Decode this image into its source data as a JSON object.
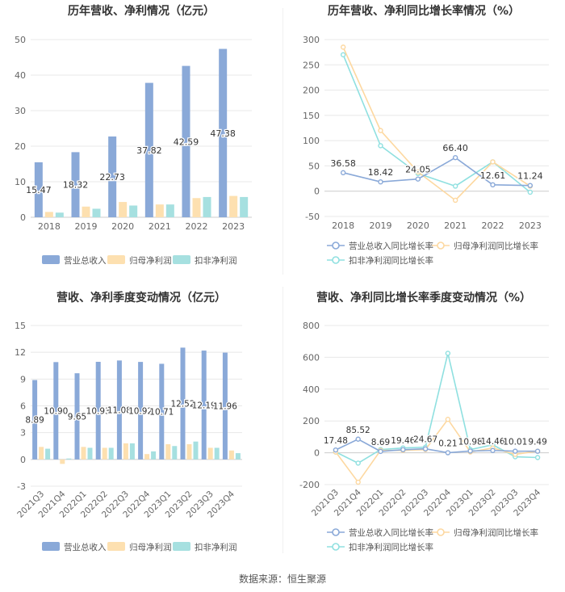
{
  "source_text": "数据来源：恒生聚源",
  "colors": {
    "revenue": "#8aa9d8",
    "net_profit": "#fde0b0",
    "deducted": "#a6e0e0",
    "grid": "#e8e8e8",
    "axis_text": "#666666"
  },
  "chart_data": [
    {
      "type": "bar",
      "title": "历年营收、净利情况（亿元）",
      "categories": [
        "2018",
        "2019",
        "2020",
        "2021",
        "2022",
        "2023"
      ],
      "ylim": [
        0,
        50
      ],
      "yticks": [
        0,
        10,
        20,
        30,
        40,
        50
      ],
      "series": [
        {
          "name": "营业总收入",
          "values": [
            15.47,
            18.32,
            22.73,
            37.82,
            42.59,
            47.38
          ],
          "labels": [
            "15.47",
            "18.32",
            "22.73",
            "37.82",
            "42.59",
            "47.38"
          ]
        },
        {
          "name": "归母净利润",
          "values": [
            1.5,
            3.0,
            4.3,
            3.6,
            5.4,
            6.0
          ]
        },
        {
          "name": "扣非净利润",
          "values": [
            1.3,
            2.4,
            3.3,
            3.6,
            5.7,
            5.7
          ]
        }
      ],
      "legend": "bottom"
    },
    {
      "type": "line",
      "title": "历年营收、净利同比增长率情况（%）",
      "categories": [
        "2018",
        "2019",
        "2020",
        "2021",
        "2022",
        "2023"
      ],
      "ylim": [
        -50,
        300
      ],
      "yticks": [
        -50,
        0,
        50,
        100,
        150,
        200,
        250,
        300
      ],
      "series": [
        {
          "name": "营业总收入同比增长率",
          "values": [
            36.58,
            18.42,
            24.05,
            66.4,
            12.61,
            11.24
          ],
          "labels": [
            "36.58",
            "18.42",
            "24.05",
            "66.40",
            "12.61",
            "11.24"
          ]
        },
        {
          "name": "归母净利润同比增长率",
          "values": [
            285,
            120,
            38,
            -18,
            58,
            10
          ]
        },
        {
          "name": "扣非净利润同比增长率",
          "values": [
            270,
            90,
            35,
            10,
            58,
            -2
          ]
        }
      ],
      "legend": "bottom"
    },
    {
      "type": "bar",
      "title": "营收、净利季度变动情况（亿元）",
      "categories": [
        "2021Q3",
        "2021Q4",
        "2022Q1",
        "2022Q2",
        "2022Q3",
        "2022Q4",
        "2023Q1",
        "2023Q2",
        "2023Q3",
        "2023Q4"
      ],
      "ylim": [
        -3,
        15
      ],
      "yticks": [
        -3,
        0,
        3,
        6,
        9,
        12,
        15
      ],
      "series": [
        {
          "name": "营业总收入",
          "values": [
            8.89,
            10.9,
            9.65,
            10.93,
            11.08,
            10.92,
            10.71,
            12.52,
            12.19,
            11.96
          ],
          "labels": [
            "8.89",
            "10.90",
            "9.65",
            "10.93",
            "11.08",
            "10.92",
            "10.71",
            "12.52",
            "12.19",
            "11.96"
          ]
        },
        {
          "name": "归母净利润",
          "values": [
            1.4,
            -0.5,
            1.4,
            1.3,
            1.8,
            0.6,
            1.7,
            1.7,
            1.3,
            1.0
          ]
        },
        {
          "name": "扣非净利润",
          "values": [
            1.2,
            0.1,
            1.3,
            1.3,
            1.8,
            0.9,
            1.5,
            2.0,
            1.3,
            0.7
          ]
        }
      ],
      "legend": "bottom"
    },
    {
      "type": "line",
      "title": "营收、净利同比增长率季度变动情况（%）",
      "categories": [
        "2021Q3",
        "2021Q4",
        "2022Q1",
        "2022Q2",
        "2022Q3",
        "2022Q4",
        "2023Q1",
        "2023Q2",
        "2023Q3",
        "2023Q4"
      ],
      "ylim": [
        -200,
        800
      ],
      "yticks": [
        -200,
        0,
        200,
        400,
        600,
        800
      ],
      "series": [
        {
          "name": "营业总收入同比增长率",
          "values": [
            17.48,
            85.52,
            8.69,
            19.46,
            24.67,
            0.21,
            10.98,
            14.46,
            10.01,
            9.49
          ],
          "labels": [
            "17.48",
            "85.52",
            "8.69",
            "19.46",
            "24.67",
            "0.21",
            "10.98",
            "14.46",
            "10.01",
            "9.49"
          ]
        },
        {
          "name": "归母净利润同比增长率",
          "values": [
            5,
            -185,
            15,
            15,
            20,
            210,
            5,
            30,
            -10,
            10
          ]
        },
        {
          "name": "扣非净利润同比增长率",
          "values": [
            5,
            -65,
            20,
            30,
            35,
            625,
            20,
            50,
            -25,
            -30
          ]
        }
      ],
      "legend": "bottom"
    }
  ]
}
